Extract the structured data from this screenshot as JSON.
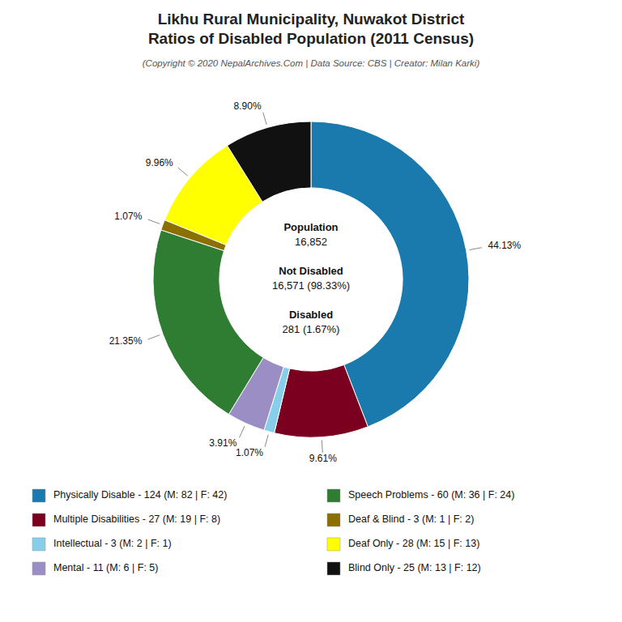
{
  "chart_data": {
    "type": "donut",
    "title": [
      "Likhu Rural Municipality, Nuwakot District",
      "Ratios of Disabled Population (2011 Census)"
    ],
    "subtitle": "(Copyright © 2020 NepalArchives.Com | Data Source: CBS | Creator: Milan Karki)",
    "categories": [
      "Physically Disable - 124 (M: 82 | F: 42)",
      "Multiple Disabilities - 27 (M: 19 | F: 8)",
      "Intellectual - 3 (M: 2 | F: 1)",
      "Mental - 11 (M: 6 | F: 5)",
      "Speech Problems - 60 (M: 36 | F: 24)",
      "Deaf & Blind - 3 (M: 1 | F: 2)",
      "Deaf Only - 28 (M: 15 | F: 13)",
      "Blind Only - 25 (M: 13 | F: 12)"
    ],
    "values": [
      44.13,
      9.61,
      1.07,
      3.91,
      21.35,
      1.07,
      9.96,
      8.9
    ],
    "value_labels": [
      "44.13%",
      "9.61%",
      "1.07%",
      "3.91%",
      "21.35%",
      "1.07%",
      "9.96%",
      "8.90%"
    ],
    "colors": [
      "#1a7aad",
      "#7b0020",
      "#87ceeb",
      "#9b8ec4",
      "#2e7d32",
      "#8b7000",
      "#ffff00",
      "#111111"
    ],
    "annotations": [
      "Population",
      "16,852",
      "Not Disabled",
      "16,571 (98.33%)",
      "Disabled",
      "281 (1.67%)"
    ],
    "data_labels": true,
    "legend": "bottom"
  }
}
